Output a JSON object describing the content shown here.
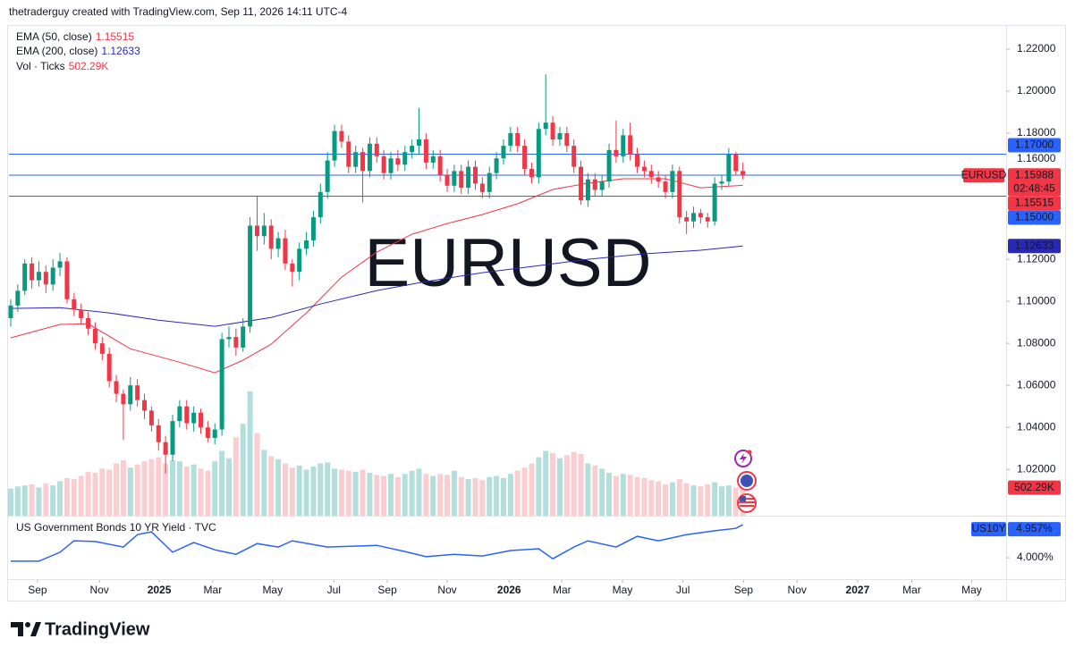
{
  "header": "thetraderguy created with TradingView.com, Sep 11, 2026 14:11 UTC-4",
  "brand": "TradingView",
  "chart_data": {
    "type": "candlestick",
    "symbol": "EURUSD",
    "last_price_label": "1.15988",
    "countdown": "02:48:45",
    "up_color": "#089981",
    "down_color": "#f23645",
    "xlim": [
      -0.25,
      141.4
    ],
    "xticks": [
      {
        "value": 3.8,
        "label": "Sep"
      },
      {
        "value": 12.6,
        "label": "Nov"
      },
      {
        "value": 21.1,
        "label": "2025"
      },
      {
        "value": 28.7,
        "label": "Mar"
      },
      {
        "value": 37.2,
        "label": "May"
      },
      {
        "value": 45.9,
        "label": "Jul"
      },
      {
        "value": 53.5,
        "label": "Sep"
      },
      {
        "value": 62.0,
        "label": "Nov"
      },
      {
        "value": 70.8,
        "label": "2026"
      },
      {
        "value": 78.3,
        "label": "Mar"
      },
      {
        "value": 86.9,
        "label": "May"
      },
      {
        "value": 95.5,
        "label": "Jul"
      },
      {
        "value": 104.1,
        "label": "Sep"
      },
      {
        "value": 111.7,
        "label": "Nov"
      },
      {
        "value": 120.3,
        "label": "2027"
      },
      {
        "value": 128.0,
        "label": "Mar"
      },
      {
        "value": 136.5,
        "label": "May"
      }
    ],
    "ylim": [
      0.998,
      1.2306
    ],
    "yticks": [
      {
        "value": 1.22,
        "label": "1.22000"
      },
      {
        "value": 1.2,
        "label": "1.20000"
      },
      {
        "value": 1.18,
        "label": "1.18000"
      },
      {
        "value": 1.12,
        "label": "1.12000"
      },
      {
        "value": 1.1,
        "label": "1.10000"
      },
      {
        "value": 1.08,
        "label": "1.08000"
      },
      {
        "value": 1.06,
        "label": "1.06000"
      },
      {
        "value": 1.04,
        "label": "1.04000"
      },
      {
        "value": 1.02,
        "label": "1.02000"
      }
    ],
    "grid": false,
    "hlines": [
      {
        "value": 1.17,
        "label": "1.17000"
      },
      {
        "value": 1.16,
        "label": "1.16000"
      },
      {
        "value": 1.15,
        "label": "1.15000"
      }
    ],
    "hline_color": "#2962ff",
    "candles": [
      [
        1.092,
        1.101,
        1.088,
        1.098
      ],
      [
        1.098,
        1.108,
        1.095,
        1.105
      ],
      [
        1.105,
        1.12,
        1.103,
        1.118
      ],
      [
        1.118,
        1.121,
        1.106,
        1.11
      ],
      [
        1.11,
        1.119,
        1.107,
        1.114
      ],
      [
        1.114,
        1.117,
        1.104,
        1.108
      ],
      [
        1.108,
        1.12,
        1.105,
        1.116
      ],
      [
        1.116,
        1.123,
        1.112,
        1.119
      ],
      [
        1.119,
        1.121,
        1.099,
        1.101
      ],
      [
        1.101,
        1.104,
        1.093,
        1.096
      ],
      [
        1.096,
        1.099,
        1.089,
        1.092
      ],
      [
        1.092,
        1.095,
        1.084,
        1.087
      ],
      [
        1.087,
        1.09,
        1.077,
        1.08
      ],
      [
        1.08,
        1.083,
        1.072,
        1.075
      ],
      [
        1.075,
        1.078,
        1.059,
        1.062
      ],
      [
        1.062,
        1.065,
        1.052,
        1.056
      ],
      [
        1.056,
        1.058,
        1.034,
        1.051
      ],
      [
        1.051,
        1.064,
        1.048,
        1.06
      ],
      [
        1.06,
        1.063,
        1.05,
        1.053
      ],
      [
        1.053,
        1.056,
        1.044,
        1.048
      ],
      [
        1.048,
        1.05,
        1.038,
        1.041
      ],
      [
        1.041,
        1.044,
        1.029,
        1.033
      ],
      [
        1.033,
        1.036,
        1.018,
        1.027
      ],
      [
        1.027,
        1.046,
        1.024,
        1.043
      ],
      [
        1.043,
        1.053,
        1.04,
        1.05
      ],
      [
        1.05,
        1.053,
        1.039,
        1.042
      ],
      [
        1.042,
        1.05,
        1.038,
        1.047
      ],
      [
        1.047,
        1.049,
        1.037,
        1.04
      ],
      [
        1.04,
        1.043,
        1.033,
        1.035
      ],
      [
        1.035,
        1.042,
        1.032,
        1.039
      ],
      [
        1.039,
        1.085,
        1.036,
        1.082
      ],
      [
        1.082,
        1.088,
        1.078,
        1.083
      ],
      [
        1.083,
        1.087,
        1.074,
        1.078
      ],
      [
        1.078,
        1.092,
        1.076,
        1.088
      ],
      [
        1.088,
        1.14,
        1.085,
        1.136
      ],
      [
        1.136,
        1.15,
        1.124,
        1.131
      ],
      [
        1.131,
        1.142,
        1.127,
        1.136
      ],
      [
        1.136,
        1.139,
        1.12,
        1.125
      ],
      [
        1.125,
        1.133,
        1.121,
        1.13
      ],
      [
        1.13,
        1.134,
        1.115,
        1.118
      ],
      [
        1.118,
        1.12,
        1.107,
        1.114
      ],
      [
        1.114,
        1.128,
        1.11,
        1.125
      ],
      [
        1.125,
        1.133,
        1.122,
        1.129
      ],
      [
        1.129,
        1.143,
        1.126,
        1.14
      ],
      [
        1.14,
        1.156,
        1.137,
        1.152
      ],
      [
        1.152,
        1.171,
        1.149,
        1.167
      ],
      [
        1.167,
        1.184,
        1.164,
        1.181
      ],
      [
        1.181,
        1.184,
        1.173,
        1.176
      ],
      [
        1.176,
        1.179,
        1.161,
        1.164
      ],
      [
        1.164,
        1.174,
        1.161,
        1.171
      ],
      [
        1.171,
        1.173,
        1.147,
        1.162
      ],
      [
        1.162,
        1.178,
        1.159,
        1.175
      ],
      [
        1.175,
        1.178,
        1.166,
        1.169
      ],
      [
        1.169,
        1.172,
        1.158,
        1.161
      ],
      [
        1.161,
        1.171,
        1.158,
        1.168
      ],
      [
        1.168,
        1.172,
        1.162,
        1.165
      ],
      [
        1.165,
        1.174,
        1.162,
        1.171
      ],
      [
        1.171,
        1.177,
        1.168,
        1.174
      ],
      [
        1.174,
        1.192,
        1.17,
        1.177
      ],
      [
        1.177,
        1.18,
        1.163,
        1.166
      ],
      [
        1.166,
        1.172,
        1.163,
        1.169
      ],
      [
        1.169,
        1.172,
        1.157,
        1.16
      ],
      [
        1.16,
        1.163,
        1.152,
        1.155
      ],
      [
        1.155,
        1.165,
        1.152,
        1.162
      ],
      [
        1.162,
        1.165,
        1.151,
        1.154
      ],
      [
        1.154,
        1.167,
        1.151,
        1.164
      ],
      [
        1.164,
        1.167,
        1.153,
        1.156
      ],
      [
        1.156,
        1.159,
        1.149,
        1.152
      ],
      [
        1.152,
        1.164,
        1.149,
        1.161
      ],
      [
        1.161,
        1.171,
        1.158,
        1.168
      ],
      [
        1.168,
        1.177,
        1.165,
        1.174
      ],
      [
        1.174,
        1.183,
        1.171,
        1.18
      ],
      [
        1.18,
        1.183,
        1.171,
        1.174
      ],
      [
        1.174,
        1.177,
        1.16,
        1.163
      ],
      [
        1.163,
        1.166,
        1.156,
        1.159
      ],
      [
        1.159,
        1.185,
        1.156,
        1.182
      ],
      [
        1.182,
        1.208,
        1.179,
        1.185
      ],
      [
        1.185,
        1.188,
        1.174,
        1.177
      ],
      [
        1.177,
        1.183,
        1.174,
        1.18
      ],
      [
        1.18,
        1.183,
        1.171,
        1.174
      ],
      [
        1.174,
        1.177,
        1.161,
        1.164
      ],
      [
        1.164,
        1.167,
        1.146,
        1.148
      ],
      [
        1.148,
        1.161,
        1.145,
        1.158
      ],
      [
        1.158,
        1.161,
        1.15,
        1.153
      ],
      [
        1.153,
        1.16,
        1.15,
        1.157
      ],
      [
        1.157,
        1.175,
        1.154,
        1.172
      ],
      [
        1.172,
        1.186,
        1.166,
        1.169
      ],
      [
        1.169,
        1.182,
        1.166,
        1.179
      ],
      [
        1.179,
        1.185,
        1.167,
        1.17
      ],
      [
        1.17,
        1.173,
        1.161,
        1.164
      ],
      [
        1.164,
        1.167,
        1.159,
        1.162
      ],
      [
        1.162,
        1.165,
        1.156,
        1.159
      ],
      [
        1.159,
        1.162,
        1.154,
        1.157
      ],
      [
        1.157,
        1.16,
        1.149,
        1.152
      ],
      [
        1.152,
        1.165,
        1.149,
        1.162
      ],
      [
        1.162,
        1.164,
        1.137,
        1.14
      ],
      [
        1.14,
        1.143,
        1.132,
        1.138
      ],
      [
        1.138,
        1.145,
        1.135,
        1.142
      ],
      [
        1.142,
        1.144,
        1.137,
        1.14
      ],
      [
        1.14,
        1.142,
        1.135,
        1.138
      ],
      [
        1.138,
        1.159,
        1.136,
        1.156
      ],
      [
        1.156,
        1.16,
        1.153,
        1.157
      ],
      [
        1.157,
        1.173,
        1.155,
        1.17
      ],
      [
        1.17,
        1.171,
        1.16,
        1.162
      ],
      [
        1.162,
        1.166,
        1.158,
        1.15988
      ]
    ],
    "volume": {
      "name": "Vol · Ticks",
      "value_label": "502.29K",
      "vlim": [
        0,
        2600
      ],
      "up_color": "#b2dfdb",
      "down_color": "#facdd1",
      "label_color": "#f23645",
      "values": [
        520,
        560,
        580,
        600,
        540,
        620,
        580,
        660,
        720,
        700,
        760,
        840,
        820,
        900,
        880,
        1000,
        1060,
        920,
        980,
        1040,
        1080,
        1120,
        1000,
        1060,
        1040,
        940,
        980,
        900,
        860,
        1040,
        1240,
        1100,
        1500,
        1760,
        2380,
        1580,
        1260,
        1140,
        1080,
        1000,
        920,
        960,
        880,
        940,
        1000,
        1020,
        900,
        880,
        860,
        840,
        880,
        820,
        780,
        760,
        800,
        740,
        800,
        860,
        900,
        800,
        760,
        800,
        780,
        860,
        740,
        700,
        720,
        680,
        740,
        760,
        720,
        800,
        860,
        920,
        1000,
        1120,
        1240,
        1200,
        1100,
        1160,
        1220,
        1180,
        1000,
        960,
        900,
        820,
        760,
        800,
        780,
        740,
        720,
        680,
        660,
        600,
        640,
        700,
        620,
        580,
        560,
        600,
        640,
        560,
        580,
        540,
        502.29
      ]
    },
    "lines": [
      {
        "name": "EMA (50, close)",
        "color": "#f23645",
        "value_label": "1.15515",
        "x": [
          0,
          7,
          11,
          17,
          24,
          29,
          33,
          37,
          42,
          47,
          52,
          57,
          62,
          67,
          72,
          77,
          82,
          87,
          93,
          98,
          104
        ],
        "values": [
          1.0826,
          1.089,
          1.0893,
          1.0774,
          1.071,
          1.066,
          1.072,
          1.0796,
          1.0945,
          1.1115,
          1.1234,
          1.1319,
          1.137,
          1.1413,
          1.1464,
          1.1532,
          1.1562,
          1.1583,
          1.1583,
          1.154,
          1.15515
        ]
      },
      {
        "name": "EMA (200, close)",
        "color": "#2929b8",
        "value_label": "1.12633",
        "x": [
          0,
          7,
          14,
          21,
          29,
          37,
          44,
          52,
          59,
          67,
          75,
          82,
          90,
          98,
          104
        ],
        "values": [
          1.0966,
          1.097,
          1.0945,
          1.091,
          1.0881,
          1.0923,
          1.0987,
          1.1051,
          1.1094,
          1.1136,
          1.117,
          1.12,
          1.1226,
          1.1243,
          1.12633
        ]
      }
    ],
    "yield": {
      "title": "US Government Bonds 10 YR Yield · TVC",
      "symbol": "US10Y",
      "color": "#2962ff",
      "value_label": "4.957%",
      "ylim": [
        3.2,
        5.14
      ],
      "yticks": [
        {
          "value": 4,
          "label": "4.000%"
        }
      ],
      "x": [
        0,
        4,
        7,
        9,
        12,
        16,
        18,
        20,
        23,
        26,
        29,
        32,
        35,
        38,
        40,
        45,
        52,
        56,
        59,
        63,
        67,
        71,
        75,
        77,
        80,
        82,
        86,
        89,
        92,
        96,
        100,
        103,
        104
      ],
      "values": [
        3.9,
        3.9,
        4.16,
        4.49,
        4.47,
        4.31,
        4.67,
        4.75,
        4.16,
        4.44,
        4.23,
        4.1,
        4.41,
        4.31,
        4.49,
        4.31,
        4.36,
        4.18,
        4.03,
        4.1,
        4.05,
        4.21,
        4.26,
        3.97,
        4.31,
        4.49,
        4.31,
        4.62,
        4.49,
        4.67,
        4.78,
        4.85,
        4.957
      ]
    }
  }
}
